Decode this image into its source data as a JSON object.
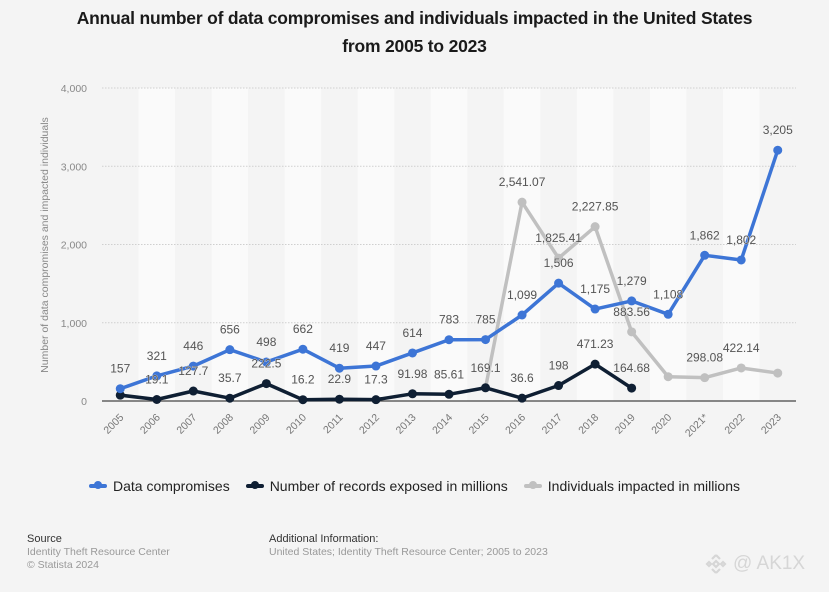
{
  "title_line1": "Annual number of data compromises and individuals impacted in the United States",
  "title_line2": "from 2005 to 2023",
  "chart_data": {
    "type": "line",
    "title": "Annual number of data compromises and individuals impacted in the United States from 2005 to 2023",
    "xlabel": "",
    "ylabel": "Number of data compromises and impacted individuals",
    "ylim": [
      0,
      4000
    ],
    "yticks": [
      0,
      1000,
      2000,
      3000,
      4000
    ],
    "ytick_labels": [
      "0",
      "1,000",
      "2,000",
      "3,000",
      "4,000"
    ],
    "grid": true,
    "legend_position": "bottom",
    "categories": [
      "2005",
      "2006",
      "2007",
      "2008",
      "2009",
      "2010",
      "2011",
      "2012",
      "2013",
      "2014",
      "2015",
      "2016",
      "2017",
      "2018",
      "2019",
      "2020",
      "2021*",
      "2022",
      "2023"
    ],
    "series": [
      {
        "name": "Data compromises",
        "color": "#3d75d6",
        "values": [
          157,
          321,
          446,
          656,
          498,
          662,
          419,
          447,
          614,
          783,
          785,
          1099,
          1506,
          1175,
          1279,
          1108,
          1862,
          1802,
          3205
        ],
        "labels": [
          "157",
          "321",
          "446",
          "656",
          "498",
          "662",
          "419",
          "447",
          "614",
          "783",
          "785",
          "1,099",
          "1,506",
          "1,175",
          "1,279",
          "1,108",
          "1,862",
          "1,802",
          "3,205"
        ]
      },
      {
        "name": "Number of records exposed in millions",
        "color": "#0f1f33",
        "values": [
          75,
          19.1,
          127.7,
          35.7,
          222.5,
          16.2,
          22.9,
          17.3,
          91.98,
          85.61,
          169.1,
          36.6,
          198,
          471.23,
          164.68,
          null,
          null,
          null,
          null
        ],
        "labels": [
          "",
          "19.1",
          "127.7",
          "35.7",
          "222.5",
          "16.2",
          "22.9",
          "17.3",
          "91.98",
          "85.61",
          "169.1",
          "36.6",
          "198",
          "471.23",
          "164.68",
          "",
          "",
          "",
          ""
        ]
      },
      {
        "name": "Individuals impacted in millions",
        "color": "#c0c0c0",
        "values": [
          null,
          null,
          null,
          null,
          null,
          null,
          null,
          null,
          null,
          null,
          169.1,
          2541.07,
          1825.41,
          2227.85,
          883.56,
          310,
          298.08,
          422.14,
          357
        ],
        "labels": [
          "",
          "",
          "",
          "",
          "",
          "",
          "",
          "",
          "",
          "",
          "",
          "2,541.07",
          "1,825.41",
          "2,227.85",
          "883.56",
          "",
          "298.08",
          "422.14",
          ""
        ]
      }
    ]
  },
  "legend": [
    {
      "label": "Data compromises",
      "color": "#3d75d6"
    },
    {
      "label": "Number of records exposed in millions",
      "color": "#0f1f33"
    },
    {
      "label": "Individuals impacted in millions",
      "color": "#c0c0c0"
    }
  ],
  "footer": {
    "source_heading": "Source",
    "source_line1": "Identity Theft Resource Center",
    "source_line2": "© Statista 2024",
    "additional_heading": "Additional Information:",
    "additional_text": "United States; Identity Theft Resource Center; 2005 to 2023"
  },
  "watermark": {
    "icon": "binance-logo-icon",
    "text": "@ AK1X"
  }
}
